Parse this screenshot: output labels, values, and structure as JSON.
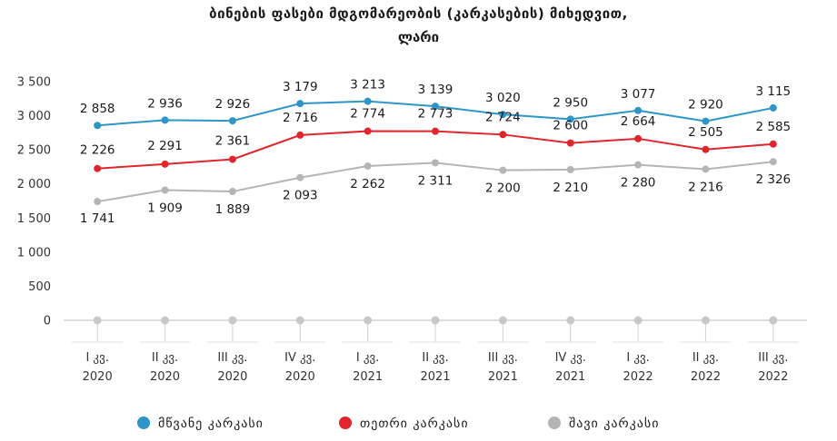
{
  "chart": {
    "title": "ბინების ფასები მდგომარეობის (კარკასების) მიხედვით,",
    "subtitle": "ლარი"
  },
  "chart_data": {
    "type": "line",
    "title": "ბინების ფასები მდგომარეობის (კარკასების) მიხედვით,",
    "subtitle": "ლარი",
    "categories": [
      [
        "I კვ.",
        "2020"
      ],
      [
        "II კვ.",
        "2020"
      ],
      [
        "III კვ.",
        "2020"
      ],
      [
        "IV კვ.",
        "2020"
      ],
      [
        "I კვ.",
        "2021"
      ],
      [
        "II კვ.",
        "2021"
      ],
      [
        "III კვ.",
        "2021"
      ],
      [
        "IV კვ.",
        "2021"
      ],
      [
        "I კვ.",
        "2022"
      ],
      [
        "II კვ.",
        "2022"
      ],
      [
        "III კვ.",
        "2022"
      ]
    ],
    "ylim": [
      0,
      3500
    ],
    "yticks": [
      0,
      500,
      1000,
      1500,
      2000,
      2500,
      3000,
      3500
    ],
    "ytick_labels": [
      "0",
      "500",
      "1 000",
      "1 500",
      "2 000",
      "2 500",
      "3 000",
      "3 500"
    ],
    "grid": false,
    "legend_position": "bottom",
    "series": [
      {
        "name": "მწვანე კარკასი",
        "color": "#2e95c9",
        "values": [
          2858,
          2936,
          2926,
          3179,
          3213,
          3139,
          3020,
          2950,
          3077,
          2920,
          3115
        ],
        "labels": [
          "2 858",
          "2 936",
          "2 926",
          "3 179",
          "3 213",
          "3 139",
          "3 020",
          "2 950",
          "3 077",
          "2 920",
          "3 115"
        ]
      },
      {
        "name": "თეთრი კარკასი",
        "color": "#e0262c",
        "values": [
          2226,
          2291,
          2361,
          2716,
          2774,
          2773,
          2724,
          2600,
          2664,
          2505,
          2585
        ],
        "labels": [
          "2 226",
          "2 291",
          "2 361",
          "2 716",
          "2 774",
          "2 773",
          "2 724",
          "2 600",
          "2 664",
          "2 505",
          "2 585"
        ]
      },
      {
        "name": "შავი კარკასი",
        "color": "#b5b5b5",
        "values": [
          1741,
          1909,
          1889,
          2093,
          2262,
          2311,
          2200,
          2210,
          2280,
          2216,
          2326
        ],
        "labels": [
          "1 741",
          "1 909",
          "1 889",
          "2 093",
          "2 262",
          "2 311",
          "2 200",
          "2 210",
          "2 280",
          "2 216",
          "2 326"
        ]
      }
    ],
    "zero_series": {
      "color": "#c8c8c8",
      "values": [
        0,
        0,
        0,
        0,
        0,
        0,
        0,
        0,
        0,
        0,
        0
      ]
    }
  }
}
